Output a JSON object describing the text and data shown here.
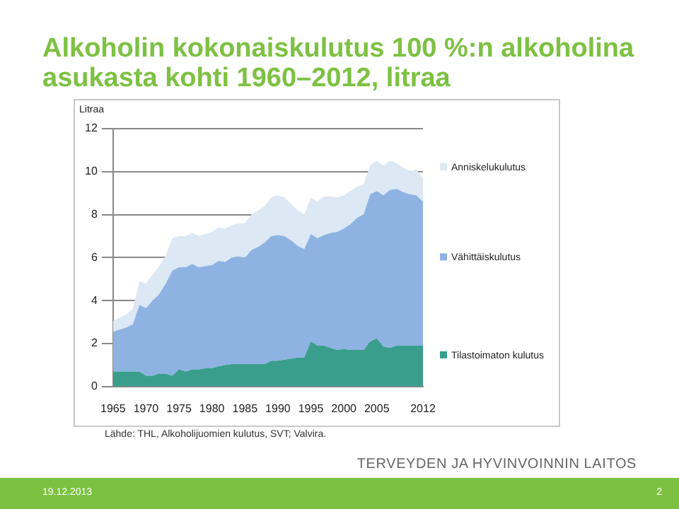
{
  "chart_data": {
    "type": "area",
    "title": "Alkoholin kokonaiskulutus 100 %:n alkoholina asukasta kohti 1960–2012, litraa",
    "ylabel": "Litraa",
    "stacked": true,
    "grid": "y",
    "legend": "right",
    "annotations": [
      "Lähde: THL, Alkoholijuomien kulutus, SVT; Valvira.",
      "TERVEYDEN JA HYVINVOINNIN LAITOS",
      "19.12.2013",
      "2"
    ],
    "x": [
      1965,
      1966,
      1967,
      1968,
      1969,
      1970,
      1971,
      1972,
      1973,
      1974,
      1975,
      1976,
      1977,
      1978,
      1979,
      1980,
      1981,
      1982,
      1983,
      1984,
      1985,
      1986,
      1987,
      1988,
      1989,
      1990,
      1991,
      1992,
      1993,
      1994,
      1995,
      1996,
      1997,
      1998,
      1999,
      2000,
      2001,
      2002,
      2003,
      2004,
      2005,
      2006,
      2007,
      2008,
      2009,
      2010,
      2011,
      2012
    ],
    "xlim": [
      1965,
      2012
    ],
    "xticks": [
      1965,
      1970,
      1975,
      1980,
      1985,
      1990,
      1995,
      2000,
      2005,
      2012
    ],
    "ylim": [
      0,
      12
    ],
    "yticks": [
      0,
      2,
      4,
      6,
      8,
      10,
      12
    ],
    "series": [
      {
        "name": "Tilastoimaton kulutus",
        "color": "#3a9e8c",
        "values": [
          0.7,
          0.7,
          0.7,
          0.7,
          0.7,
          0.5,
          0.5,
          0.6,
          0.6,
          0.5,
          0.8,
          0.7,
          0.8,
          0.8,
          0.85,
          0.85,
          0.95,
          1.0,
          1.05,
          1.05,
          1.05,
          1.05,
          1.05,
          1.05,
          1.2,
          1.2,
          1.25,
          1.3,
          1.35,
          1.35,
          2.1,
          1.9,
          1.9,
          1.8,
          1.7,
          1.75,
          1.7,
          1.7,
          1.7,
          2.1,
          2.25,
          1.85,
          1.8,
          1.9,
          1.9,
          1.9,
          1.9,
          1.9
        ]
      },
      {
        "name": "Vähittäiskulutus",
        "color": "#8eb3e3",
        "values": [
          1.85,
          1.95,
          2.05,
          2.2,
          3.1,
          3.15,
          3.5,
          3.7,
          4.2,
          4.9,
          4.75,
          4.85,
          4.9,
          4.75,
          4.75,
          4.8,
          4.9,
          4.8,
          4.95,
          5.0,
          4.95,
          5.3,
          5.45,
          5.65,
          5.8,
          5.85,
          5.75,
          5.5,
          5.2,
          5.05,
          5.0,
          5.0,
          5.15,
          5.35,
          5.5,
          5.6,
          5.85,
          6.15,
          6.3,
          6.85,
          6.85,
          7.05,
          7.35,
          7.3,
          7.15,
          7.05,
          7.0,
          6.7
        ]
      },
      {
        "name": "Anniskelukulutus",
        "color": "#dce8f4",
        "values": [
          0.5,
          0.55,
          0.6,
          0.7,
          1.1,
          1.15,
          1.2,
          1.3,
          1.3,
          1.5,
          1.45,
          1.45,
          1.45,
          1.45,
          1.5,
          1.55,
          1.55,
          1.55,
          1.5,
          1.55,
          1.6,
          1.65,
          1.7,
          1.7,
          1.8,
          1.85,
          1.8,
          1.7,
          1.65,
          1.6,
          1.7,
          1.7,
          1.8,
          1.7,
          1.6,
          1.55,
          1.55,
          1.45,
          1.4,
          1.35,
          1.4,
          1.4,
          1.35,
          1.2,
          1.15,
          1.05,
          1.2,
          1.1
        ]
      }
    ]
  }
}
